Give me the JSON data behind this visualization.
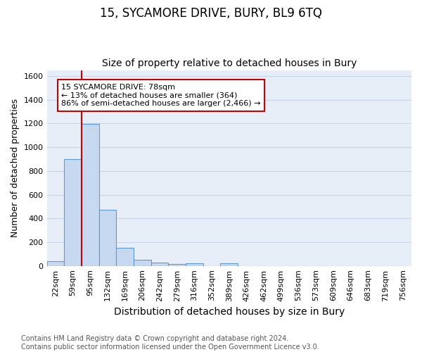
{
  "title": "15, SYCAMORE DRIVE, BURY, BL9 6TQ",
  "subtitle": "Size of property relative to detached houses in Bury",
  "xlabel": "Distribution of detached houses by size in Bury",
  "ylabel": "Number of detached properties",
  "footnote": "Contains HM Land Registry data © Crown copyright and database right 2024.\nContains public sector information licensed under the Open Government Licence v3.0.",
  "bin_labels": [
    "22sqm",
    "59sqm",
    "95sqm",
    "132sqm",
    "169sqm",
    "206sqm",
    "242sqm",
    "279sqm",
    "316sqm",
    "352sqm",
    "389sqm",
    "426sqm",
    "462sqm",
    "499sqm",
    "536sqm",
    "573sqm",
    "609sqm",
    "646sqm",
    "683sqm",
    "719sqm",
    "756sqm"
  ],
  "bar_values": [
    40,
    900,
    1195,
    470,
    150,
    50,
    28,
    15,
    20,
    0,
    20,
    0,
    0,
    0,
    0,
    0,
    0,
    0,
    0,
    0,
    0
  ],
  "bar_color": "#c6d9f1",
  "bar_edge_color": "#5b9bd5",
  "annotation_line1": "15 SYCAMORE DRIVE: 78sqm",
  "annotation_line2": "← 13% of detached houses are smaller (364)",
  "annotation_line3": "86% of semi-detached houses are larger (2,466) →",
  "vline_x": 1.5,
  "vline_color": "#cc0000",
  "ylim": [
    0,
    1650
  ],
  "yticks": [
    0,
    200,
    400,
    600,
    800,
    1000,
    1200,
    1400,
    1600
  ],
  "background_color": "#dce6f5",
  "grid_color": "#c8d4e8",
  "plot_bg_color": "#e8eef8",
  "title_fontsize": 12,
  "subtitle_fontsize": 10,
  "xlabel_fontsize": 10,
  "ylabel_fontsize": 9,
  "tick_fontsize": 8,
  "annotation_fontsize": 8,
  "footnote_fontsize": 7
}
